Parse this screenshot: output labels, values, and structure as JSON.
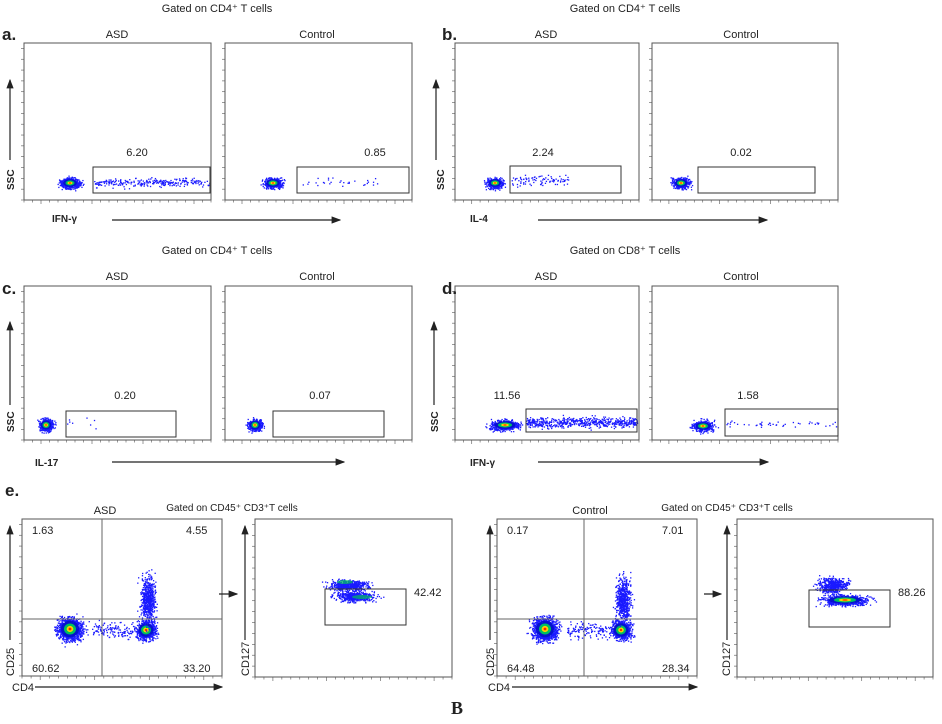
{
  "figure_label": "B",
  "chart_data": [
    {
      "type": "scatter",
      "panel": "a.",
      "title": "Gated on CD4⁺ T cells",
      "xlabel": "IFN-γ",
      "ylabel": "SSC",
      "plots": [
        {
          "name": "ASD",
          "gate_value": "6.20"
        },
        {
          "name": "Control",
          "gate_value": "0.85"
        }
      ]
    },
    {
      "type": "scatter",
      "panel": "b.",
      "title": "Gated on CD4⁺ T cells",
      "xlabel": "IL-4",
      "ylabel": "SSC",
      "plots": [
        {
          "name": "ASD",
          "gate_value": "2.24"
        },
        {
          "name": "Control",
          "gate_value": "0.02"
        }
      ]
    },
    {
      "type": "scatter",
      "panel": "c.",
      "title": "Gated on CD4⁺ T cells",
      "xlabel": "IL-17",
      "ylabel": "SSC",
      "plots": [
        {
          "name": "ASD",
          "gate_value": "0.20"
        },
        {
          "name": "Control",
          "gate_value": "0.07"
        }
      ]
    },
    {
      "type": "scatter",
      "panel": "d.",
      "title": "Gated on CD8⁺ T cells",
      "xlabel": "IFN-γ",
      "ylabel": "SSC",
      "plots": [
        {
          "name": "ASD",
          "gate_value": "11.56"
        },
        {
          "name": "Control",
          "gate_value": "1.58"
        }
      ]
    },
    {
      "type": "scatter",
      "panel": "e.",
      "groups": [
        {
          "name": "ASD",
          "title": "Gated on CD45⁺  CD3⁺T cells",
          "quad_xlabel": "CD4",
          "quad_ylabel": "CD25",
          "quadrants": {
            "upper_left": "1.63",
            "upper_right": "4.55",
            "lower_left": "60.62",
            "lower_right": "33.20"
          },
          "gate_ylabel": "CD127",
          "gate_value": "42.42"
        },
        {
          "name": "Control",
          "title": "Gated on CD45⁺  CD3⁺T cells",
          "quad_xlabel": "CD4",
          "quad_ylabel": "CD25",
          "quadrants": {
            "upper_left": "0.17",
            "upper_right": "7.01",
            "lower_left": "64.48",
            "lower_right": "28.34"
          },
          "gate_ylabel": "CD127",
          "gate_value": "88.26"
        }
      ]
    }
  ],
  "colors": {
    "dots": "#1a1aff",
    "dense": "#00c060",
    "core": "#ffd000",
    "peak": "#ff2000",
    "frame": "#555555"
  }
}
